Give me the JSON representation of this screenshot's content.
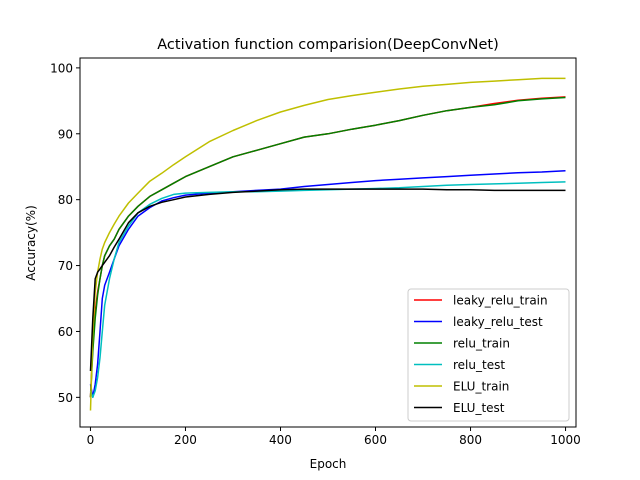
{
  "chart_data": {
    "type": "line",
    "title": "Activation function comparision(DeepConvNet)",
    "xlabel": "Epoch",
    "ylabel": "Accuracy(%)",
    "xlim": [
      -22,
      1022
    ],
    "ylim": [
      45.5,
      101.5
    ],
    "xticks": [
      0,
      200,
      400,
      600,
      800,
      1000
    ],
    "yticks": [
      50,
      60,
      70,
      80,
      90,
      100
    ],
    "grid": false,
    "legend_position": "bottom-right",
    "x": [
      0,
      5,
      10,
      15,
      20,
      25,
      30,
      40,
      50,
      60,
      80,
      100,
      125,
      150,
      175,
      200,
      250,
      300,
      350,
      400,
      450,
      500,
      550,
      600,
      650,
      700,
      750,
      800,
      850,
      900,
      950,
      1000
    ],
    "series": [
      {
        "name": "leaky_relu_train",
        "color": "#ff0000",
        "values": [
          50,
          58,
          63,
          66,
          68,
          70,
          71.5,
          73,
          74,
          75.5,
          77.5,
          79,
          80.5,
          81.5,
          82.5,
          83.5,
          85,
          86.5,
          87.5,
          88.5,
          89.5,
          90,
          90.7,
          91.3,
          92,
          92.8,
          93.5,
          94,
          94.6,
          95.1,
          95.4,
          95.6
        ]
      },
      {
        "name": "leaky_relu_test",
        "color": "#0000ff",
        "values": [
          52,
          50,
          52,
          55,
          60,
          65,
          67,
          69,
          71,
          73,
          75.5,
          77.5,
          78.8,
          79.8,
          80.3,
          80.7,
          81,
          81.2,
          81.4,
          81.6,
          82,
          82.3,
          82.6,
          82.9,
          83.1,
          83.3,
          83.5,
          83.7,
          83.9,
          84.1,
          84.2,
          84.4
        ]
      },
      {
        "name": "relu_train",
        "color": "#008000",
        "values": [
          50,
          57,
          62,
          65.5,
          68,
          70,
          71.5,
          73,
          74,
          75.5,
          77.5,
          79,
          80.5,
          81.5,
          82.5,
          83.5,
          85,
          86.5,
          87.5,
          88.5,
          89.5,
          90,
          90.7,
          91.3,
          92,
          92.8,
          93.5,
          94,
          94.4,
          95,
          95.3,
          95.5
        ]
      },
      {
        "name": "relu_test",
        "color": "#00bfbf",
        "values": [
          51,
          50,
          51,
          53,
          56,
          60,
          64,
          68,
          71,
          73.5,
          76,
          78,
          79.3,
          80.2,
          80.8,
          81,
          81.1,
          81.2,
          81.2,
          81.3,
          81.4,
          81.5,
          81.6,
          81.7,
          81.8,
          82,
          82.2,
          82.3,
          82.4,
          82.5,
          82.6,
          82.7
        ]
      },
      {
        "name": "ELU_train",
        "color": "#bfbf00",
        "values": [
          48,
          60,
          66,
          69,
          71,
          72.5,
          73.5,
          75,
          76.3,
          77.5,
          79.5,
          81,
          82.8,
          84,
          85.3,
          86.5,
          88.8,
          90.5,
          92,
          93.3,
          94.3,
          95.2,
          95.8,
          96.3,
          96.8,
          97.2,
          97.5,
          97.8,
          98,
          98.2,
          98.4,
          98.4
        ]
      },
      {
        "name": "ELU_test",
        "color": "#000000",
        "values": [
          54,
          62,
          68,
          69,
          69.5,
          70,
          70.5,
          71.5,
          72.8,
          74,
          76.5,
          78,
          79,
          79.6,
          80,
          80.4,
          80.8,
          81.1,
          81.3,
          81.5,
          81.6,
          81.6,
          81.6,
          81.6,
          81.6,
          81.6,
          81.5,
          81.5,
          81.4,
          81.4,
          81.4,
          81.4
        ]
      }
    ]
  }
}
